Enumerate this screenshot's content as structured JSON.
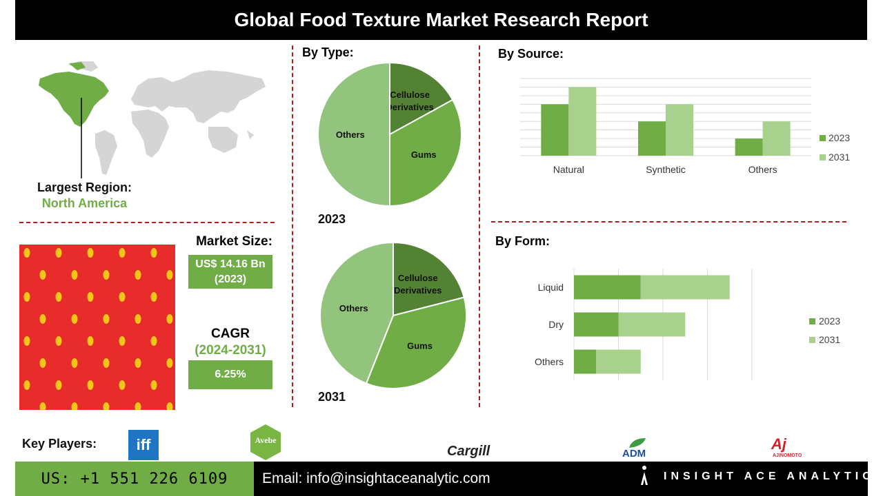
{
  "header": {
    "title": "Global Food Texture Market Research Report"
  },
  "region": {
    "label": "Largest Region:",
    "value": "North America"
  },
  "market_size": {
    "label": "Market Size:",
    "value": "US$ 14.16 Bn",
    "year": "(2023)"
  },
  "cagr": {
    "label": "CAGR",
    "period": "(2024-2031)",
    "value": "6.25%"
  },
  "key_players": {
    "label": "Key Players:",
    "logos": [
      "iff",
      "Avebe",
      "Cargill",
      "ADM",
      "AJINOMOTO"
    ]
  },
  "footer": {
    "phone": "US: +1 551 226 6109",
    "email": "Email: info@insightaceanalytic.com",
    "brand": "INSIGHT ACE ANALYTIC"
  },
  "colors": {
    "dark_green": "#548235",
    "mid_green": "#70ad47",
    "light_green": "#a9d18e",
    "pie_others": "#93c47d",
    "accent_red": "#b01c1c"
  },
  "chart_data": [
    {
      "type": "pie",
      "title": "By  Type:",
      "label": "2023",
      "slices": [
        {
          "name": "Cellulose Derivatives",
          "value": 17
        },
        {
          "name": "Gums",
          "value": 33
        },
        {
          "name": "Others",
          "value": 50
        }
      ]
    },
    {
      "type": "pie",
      "label": "2031",
      "slices": [
        {
          "name": "Cellulose Derivatives",
          "value": 21
        },
        {
          "name": "Gums",
          "value": 35
        },
        {
          "name": "Others",
          "value": 44
        }
      ]
    },
    {
      "type": "bar",
      "title": "By Source:",
      "categories": [
        "Natural",
        "Synthetic",
        "Others"
      ],
      "series": [
        {
          "name": "2023",
          "values": [
            3,
            2,
            1
          ]
        },
        {
          "name": "2031",
          "values": [
            4,
            3,
            2
          ]
        }
      ],
      "ylim": [
        0,
        4.5
      ],
      "grid": true,
      "legend": "right"
    },
    {
      "type": "bar",
      "orientation": "horizontal-stacked",
      "title": "By Form:",
      "categories": [
        "Liquid",
        "Dry",
        "Others"
      ],
      "series": [
        {
          "name": "2023",
          "values": [
            1.5,
            1.0,
            0.5
          ]
        },
        {
          "name": "2031",
          "values": [
            2.0,
            1.5,
            1.0
          ]
        }
      ],
      "xlim": [
        0,
        4
      ],
      "grid": true,
      "legend": "right"
    }
  ]
}
